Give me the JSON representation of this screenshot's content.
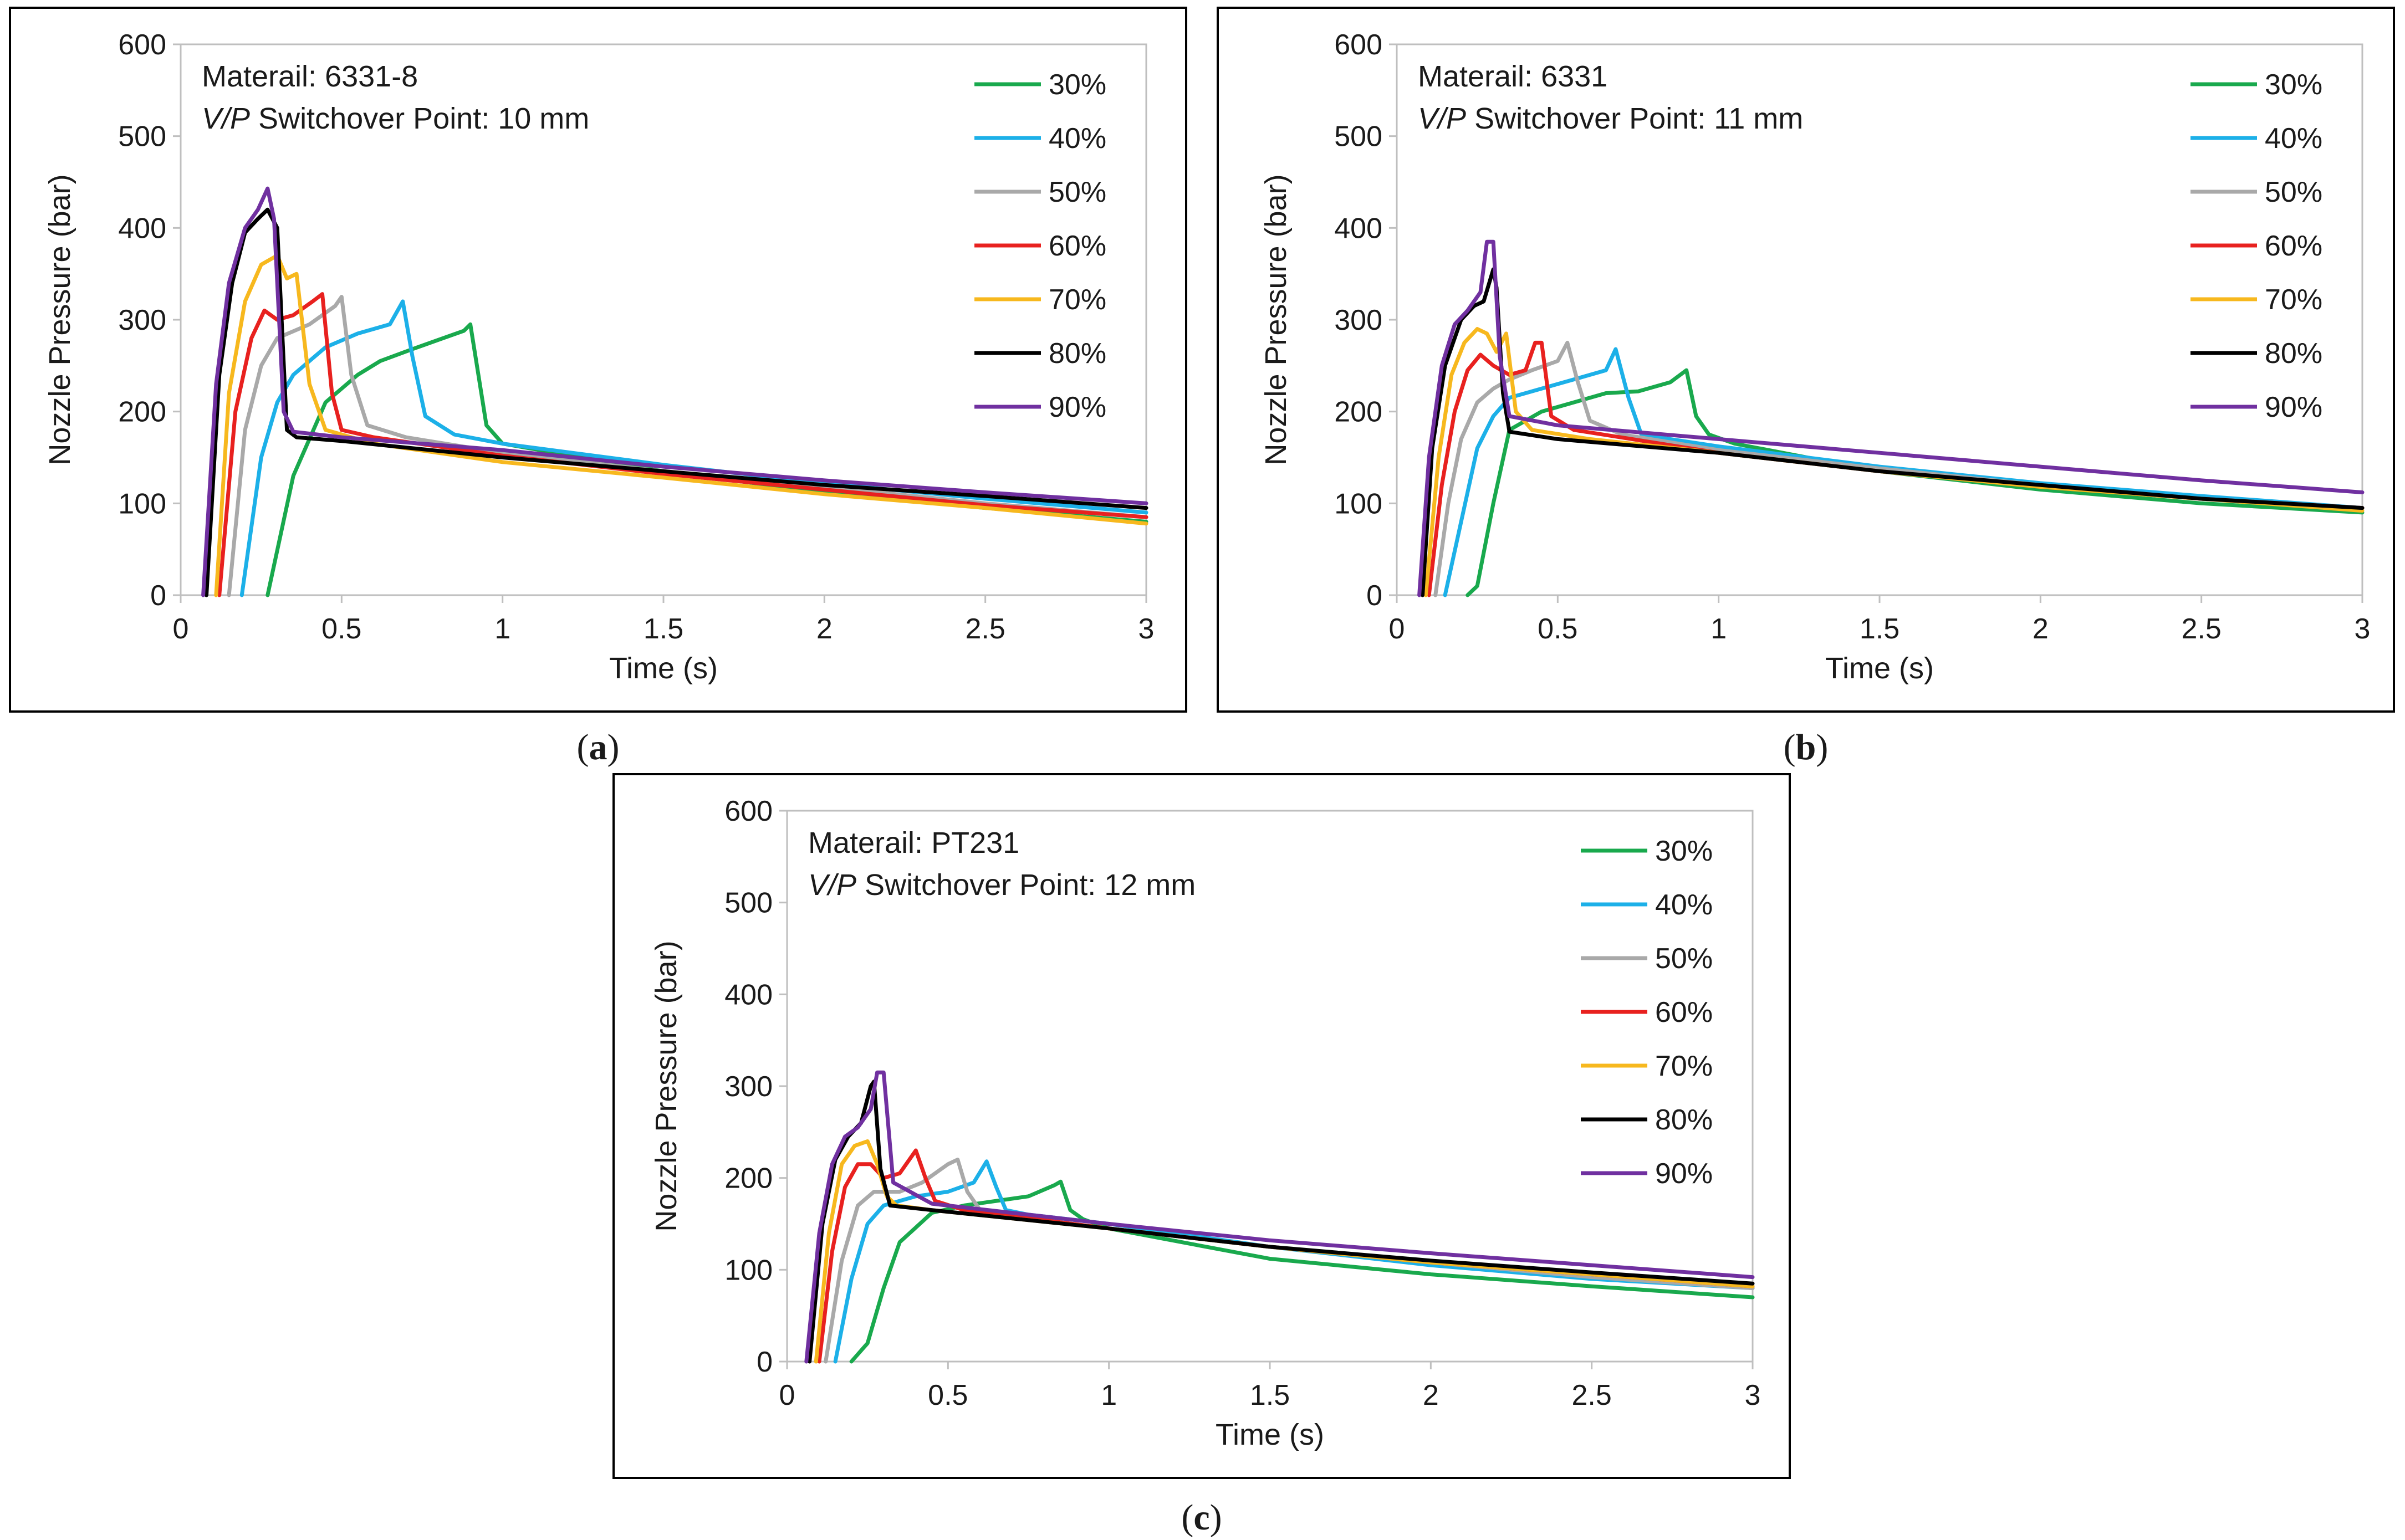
{
  "figure": {
    "captions": [
      "(a)",
      "(b)",
      "(c)"
    ]
  },
  "colors": {
    "30%": "#19a94d",
    "40%": "#1cb0e8",
    "50%": "#a9a9a9",
    "60%": "#e8211f",
    "70%": "#f7b81e",
    "80%": "#000000",
    "90%": "#7030a0"
  },
  "chart_data": [
    {
      "type": "line",
      "panel": "(a)",
      "xlabel": "Time (s)",
      "ylabel": "Nozzle Pressure (bar)",
      "xlim": [
        0,
        3
      ],
      "ylim": [
        0,
        600
      ],
      "xticks": [
        "0",
        "0.5",
        "1",
        "1.5",
        "2",
        "2.5",
        "3"
      ],
      "yticks": [
        "0",
        "100",
        "200",
        "300",
        "400",
        "500",
        "600"
      ],
      "annotation_material": "Materail: 6331-8",
      "annotation_vp_prefix": "V/P",
      "annotation_vp_suffix": " Switchover Point: 10 mm",
      "legend_position": "top-right",
      "series": [
        {
          "name": "30%",
          "x": [
            0.27,
            0.35,
            0.45,
            0.55,
            0.62,
            0.72,
            0.8,
            0.88,
            0.9,
            0.95,
            1.0,
            1.5,
            2.0,
            2.5,
            3.0
          ],
          "y": [
            0,
            130,
            210,
            240,
            255,
            268,
            278,
            288,
            295,
            185,
            165,
            135,
            112,
            95,
            80
          ]
        },
        {
          "name": "40%",
          "x": [
            0.19,
            0.25,
            0.3,
            0.35,
            0.45,
            0.55,
            0.65,
            0.69,
            0.72,
            0.76,
            0.85,
            1.0,
            1.5,
            2.0,
            2.5,
            3.0
          ],
          "y": [
            0,
            150,
            210,
            240,
            270,
            285,
            295,
            320,
            260,
            195,
            175,
            165,
            142,
            122,
            105,
            90
          ]
        },
        {
          "name": "50%",
          "x": [
            0.15,
            0.2,
            0.25,
            0.3,
            0.4,
            0.48,
            0.5,
            0.53,
            0.58,
            0.7,
            1.0,
            1.5,
            2.0,
            2.5,
            3.0
          ],
          "y": [
            0,
            180,
            250,
            280,
            295,
            315,
            325,
            240,
            185,
            172,
            155,
            135,
            118,
            100,
            85
          ]
        },
        {
          "name": "60%",
          "x": [
            0.12,
            0.17,
            0.22,
            0.26,
            0.3,
            0.35,
            0.41,
            0.44,
            0.47,
            0.5,
            0.6,
            1.0,
            1.5,
            2.0,
            2.5,
            3.0
          ],
          "y": [
            0,
            200,
            280,
            310,
            300,
            305,
            320,
            328,
            220,
            180,
            172,
            152,
            132,
            115,
            98,
            85
          ]
        },
        {
          "name": "70%",
          "x": [
            0.11,
            0.15,
            0.2,
            0.25,
            0.3,
            0.33,
            0.36,
            0.4,
            0.45,
            0.6,
            1.0,
            1.5,
            2.0,
            2.5,
            3.0
          ],
          "y": [
            0,
            220,
            320,
            360,
            370,
            345,
            350,
            230,
            180,
            165,
            145,
            128,
            110,
            95,
            78
          ]
        },
        {
          "name": "80%",
          "x": [
            0.08,
            0.12,
            0.16,
            0.2,
            0.24,
            0.27,
            0.3,
            0.33,
            0.36,
            0.5,
            1.0,
            1.5,
            2.0,
            2.5,
            3.0
          ],
          "y": [
            0,
            240,
            340,
            395,
            410,
            420,
            400,
            180,
            172,
            168,
            150,
            135,
            120,
            108,
            95
          ]
        },
        {
          "name": "90%",
          "x": [
            0.07,
            0.11,
            0.15,
            0.2,
            0.24,
            0.27,
            0.29,
            0.32,
            0.35,
            0.5,
            1.0,
            1.5,
            2.0,
            2.5,
            3.0
          ],
          "y": [
            0,
            230,
            340,
            400,
            420,
            443,
            410,
            200,
            178,
            172,
            158,
            140,
            125,
            112,
            100
          ]
        }
      ]
    },
    {
      "type": "line",
      "panel": "(b)",
      "xlabel": "Time (s)",
      "ylabel": "Nozzle Pressure (bar)",
      "xlim": [
        0,
        3
      ],
      "ylim": [
        0,
        600
      ],
      "xticks": [
        "0",
        "0.5",
        "1",
        "1.5",
        "2",
        "2.5",
        "3"
      ],
      "yticks": [
        "0",
        "100",
        "200",
        "300",
        "400",
        "500",
        "600"
      ],
      "annotation_material": "Materail: 6331",
      "annotation_vp_prefix": "V/P",
      "annotation_vp_suffix": " Switchover Point: 11 mm",
      "legend_position": "top-right",
      "series": [
        {
          "name": "30%",
          "x": [
            0.22,
            0.25,
            0.3,
            0.35,
            0.45,
            0.55,
            0.65,
            0.75,
            0.85,
            0.9,
            0.93,
            0.97,
            1.05,
            1.5,
            2.0,
            2.5,
            3.0
          ],
          "y": [
            0,
            10,
            100,
            180,
            200,
            210,
            220,
            222,
            232,
            245,
            195,
            175,
            165,
            135,
            115,
            100,
            90
          ]
        },
        {
          "name": "40%",
          "x": [
            0.15,
            0.2,
            0.25,
            0.3,
            0.35,
            0.45,
            0.55,
            0.65,
            0.68,
            0.72,
            0.76,
            0.85,
            1.0,
            1.5,
            2.0,
            2.5,
            3.0
          ],
          "y": [
            0,
            80,
            160,
            195,
            215,
            225,
            235,
            245,
            268,
            215,
            175,
            170,
            162,
            140,
            122,
            108,
            95
          ]
        },
        {
          "name": "50%",
          "x": [
            0.12,
            0.16,
            0.2,
            0.25,
            0.3,
            0.35,
            0.42,
            0.5,
            0.53,
            0.56,
            0.6,
            0.7,
            1.0,
            1.5,
            2.0,
            2.5,
            3.0
          ],
          "y": [
            0,
            100,
            170,
            210,
            225,
            235,
            245,
            255,
            275,
            235,
            190,
            175,
            158,
            138,
            120,
            105,
            95
          ]
        },
        {
          "name": "60%",
          "x": [
            0.1,
            0.14,
            0.18,
            0.22,
            0.26,
            0.3,
            0.35,
            0.4,
            0.43,
            0.45,
            0.48,
            0.55,
            1.0,
            1.5,
            2.0,
            2.5,
            3.0
          ],
          "y": [
            0,
            120,
            200,
            245,
            262,
            250,
            240,
            245,
            275,
            275,
            195,
            180,
            155,
            135,
            118,
            105,
            95
          ]
        },
        {
          "name": "70%",
          "x": [
            0.09,
            0.13,
            0.17,
            0.21,
            0.25,
            0.28,
            0.31,
            0.34,
            0.37,
            0.42,
            0.6,
            1.0,
            1.5,
            2.0,
            2.5,
            3.0
          ],
          "y": [
            0,
            150,
            240,
            275,
            290,
            285,
            265,
            285,
            200,
            180,
            170,
            155,
            135,
            118,
            105,
            92
          ]
        },
        {
          "name": "80%",
          "x": [
            0.08,
            0.11,
            0.15,
            0.2,
            0.24,
            0.27,
            0.3,
            0.31,
            0.33,
            0.35,
            0.5,
            1.0,
            1.5,
            2.0,
            2.5,
            3.0
          ],
          "y": [
            0,
            160,
            250,
            300,
            315,
            320,
            355,
            335,
            220,
            178,
            170,
            155,
            135,
            120,
            105,
            95
          ]
        },
        {
          "name": "90%",
          "x": [
            0.07,
            0.1,
            0.14,
            0.18,
            0.22,
            0.26,
            0.28,
            0.3,
            0.32,
            0.35,
            0.5,
            1.0,
            1.5,
            2.0,
            2.5,
            3.0
          ],
          "y": [
            0,
            150,
            250,
            295,
            310,
            330,
            385,
            385,
            260,
            195,
            185,
            170,
            155,
            140,
            125,
            112
          ]
        }
      ]
    },
    {
      "type": "line",
      "panel": "(c)",
      "xlabel": "Time (s)",
      "ylabel": "Nozzle Pressure (bar)",
      "xlim": [
        0,
        3
      ],
      "ylim": [
        0,
        600
      ],
      "xticks": [
        "0",
        "0.5",
        "1",
        "1.5",
        "2",
        "2.5",
        "3"
      ],
      "yticks": [
        "0",
        "100",
        "200",
        "300",
        "400",
        "500",
        "600"
      ],
      "annotation_material": "Materail: PT231",
      "annotation_vp_prefix": "V/P",
      "annotation_vp_suffix": " Switchover Point: 12 mm",
      "legend_position": "top-right",
      "series": [
        {
          "name": "30%",
          "x": [
            0.2,
            0.25,
            0.3,
            0.35,
            0.45,
            0.55,
            0.65,
            0.75,
            0.83,
            0.85,
            0.88,
            0.92,
            1.0,
            1.5,
            2.0,
            2.5,
            3.0
          ],
          "y": [
            0,
            20,
            80,
            130,
            162,
            170,
            175,
            180,
            192,
            196,
            165,
            155,
            145,
            112,
            95,
            82,
            70
          ]
        },
        {
          "name": "40%",
          "x": [
            0.15,
            0.2,
            0.25,
            0.3,
            0.4,
            0.5,
            0.58,
            0.62,
            0.65,
            0.68,
            0.75,
            1.0,
            1.5,
            2.0,
            2.5,
            3.0
          ],
          "y": [
            0,
            90,
            150,
            170,
            180,
            185,
            195,
            218,
            190,
            165,
            160,
            150,
            125,
            105,
            90,
            80
          ]
        },
        {
          "name": "50%",
          "x": [
            0.12,
            0.17,
            0.22,
            0.27,
            0.35,
            0.42,
            0.5,
            0.53,
            0.56,
            0.6,
            0.7,
            1.0,
            1.5,
            2.0,
            2.5,
            3.0
          ],
          "y": [
            0,
            110,
            170,
            185,
            185,
            195,
            215,
            220,
            185,
            165,
            158,
            145,
            125,
            108,
            92,
            80
          ]
        },
        {
          "name": "60%",
          "x": [
            0.1,
            0.14,
            0.18,
            0.22,
            0.26,
            0.3,
            0.35,
            0.4,
            0.43,
            0.46,
            0.55,
            1.0,
            1.5,
            2.0,
            2.5,
            3.0
          ],
          "y": [
            0,
            120,
            190,
            215,
            215,
            200,
            205,
            230,
            200,
            175,
            165,
            145,
            125,
            108,
            95,
            82
          ]
        },
        {
          "name": "70%",
          "x": [
            0.09,
            0.13,
            0.17,
            0.21,
            0.25,
            0.28,
            0.31,
            0.34,
            0.45,
            1.0,
            1.5,
            2.0,
            2.5,
            3.0
          ],
          "y": [
            0,
            140,
            215,
            235,
            240,
            215,
            180,
            170,
            165,
            145,
            125,
            108,
            95,
            82
          ]
        },
        {
          "name": "80%",
          "x": [
            0.07,
            0.11,
            0.15,
            0.19,
            0.23,
            0.26,
            0.27,
            0.29,
            0.32,
            0.45,
            1.0,
            1.5,
            2.0,
            2.5,
            3.0
          ],
          "y": [
            0,
            150,
            220,
            245,
            260,
            300,
            305,
            210,
            170,
            165,
            145,
            125,
            110,
            97,
            85
          ]
        },
        {
          "name": "90%",
          "x": [
            0.06,
            0.1,
            0.14,
            0.18,
            0.22,
            0.26,
            0.28,
            0.3,
            0.33,
            0.45,
            1.0,
            1.5,
            2.0,
            2.5,
            3.0
          ],
          "y": [
            0,
            140,
            215,
            245,
            255,
            275,
            315,
            315,
            195,
            172,
            150,
            132,
            118,
            105,
            92
          ]
        }
      ]
    }
  ]
}
